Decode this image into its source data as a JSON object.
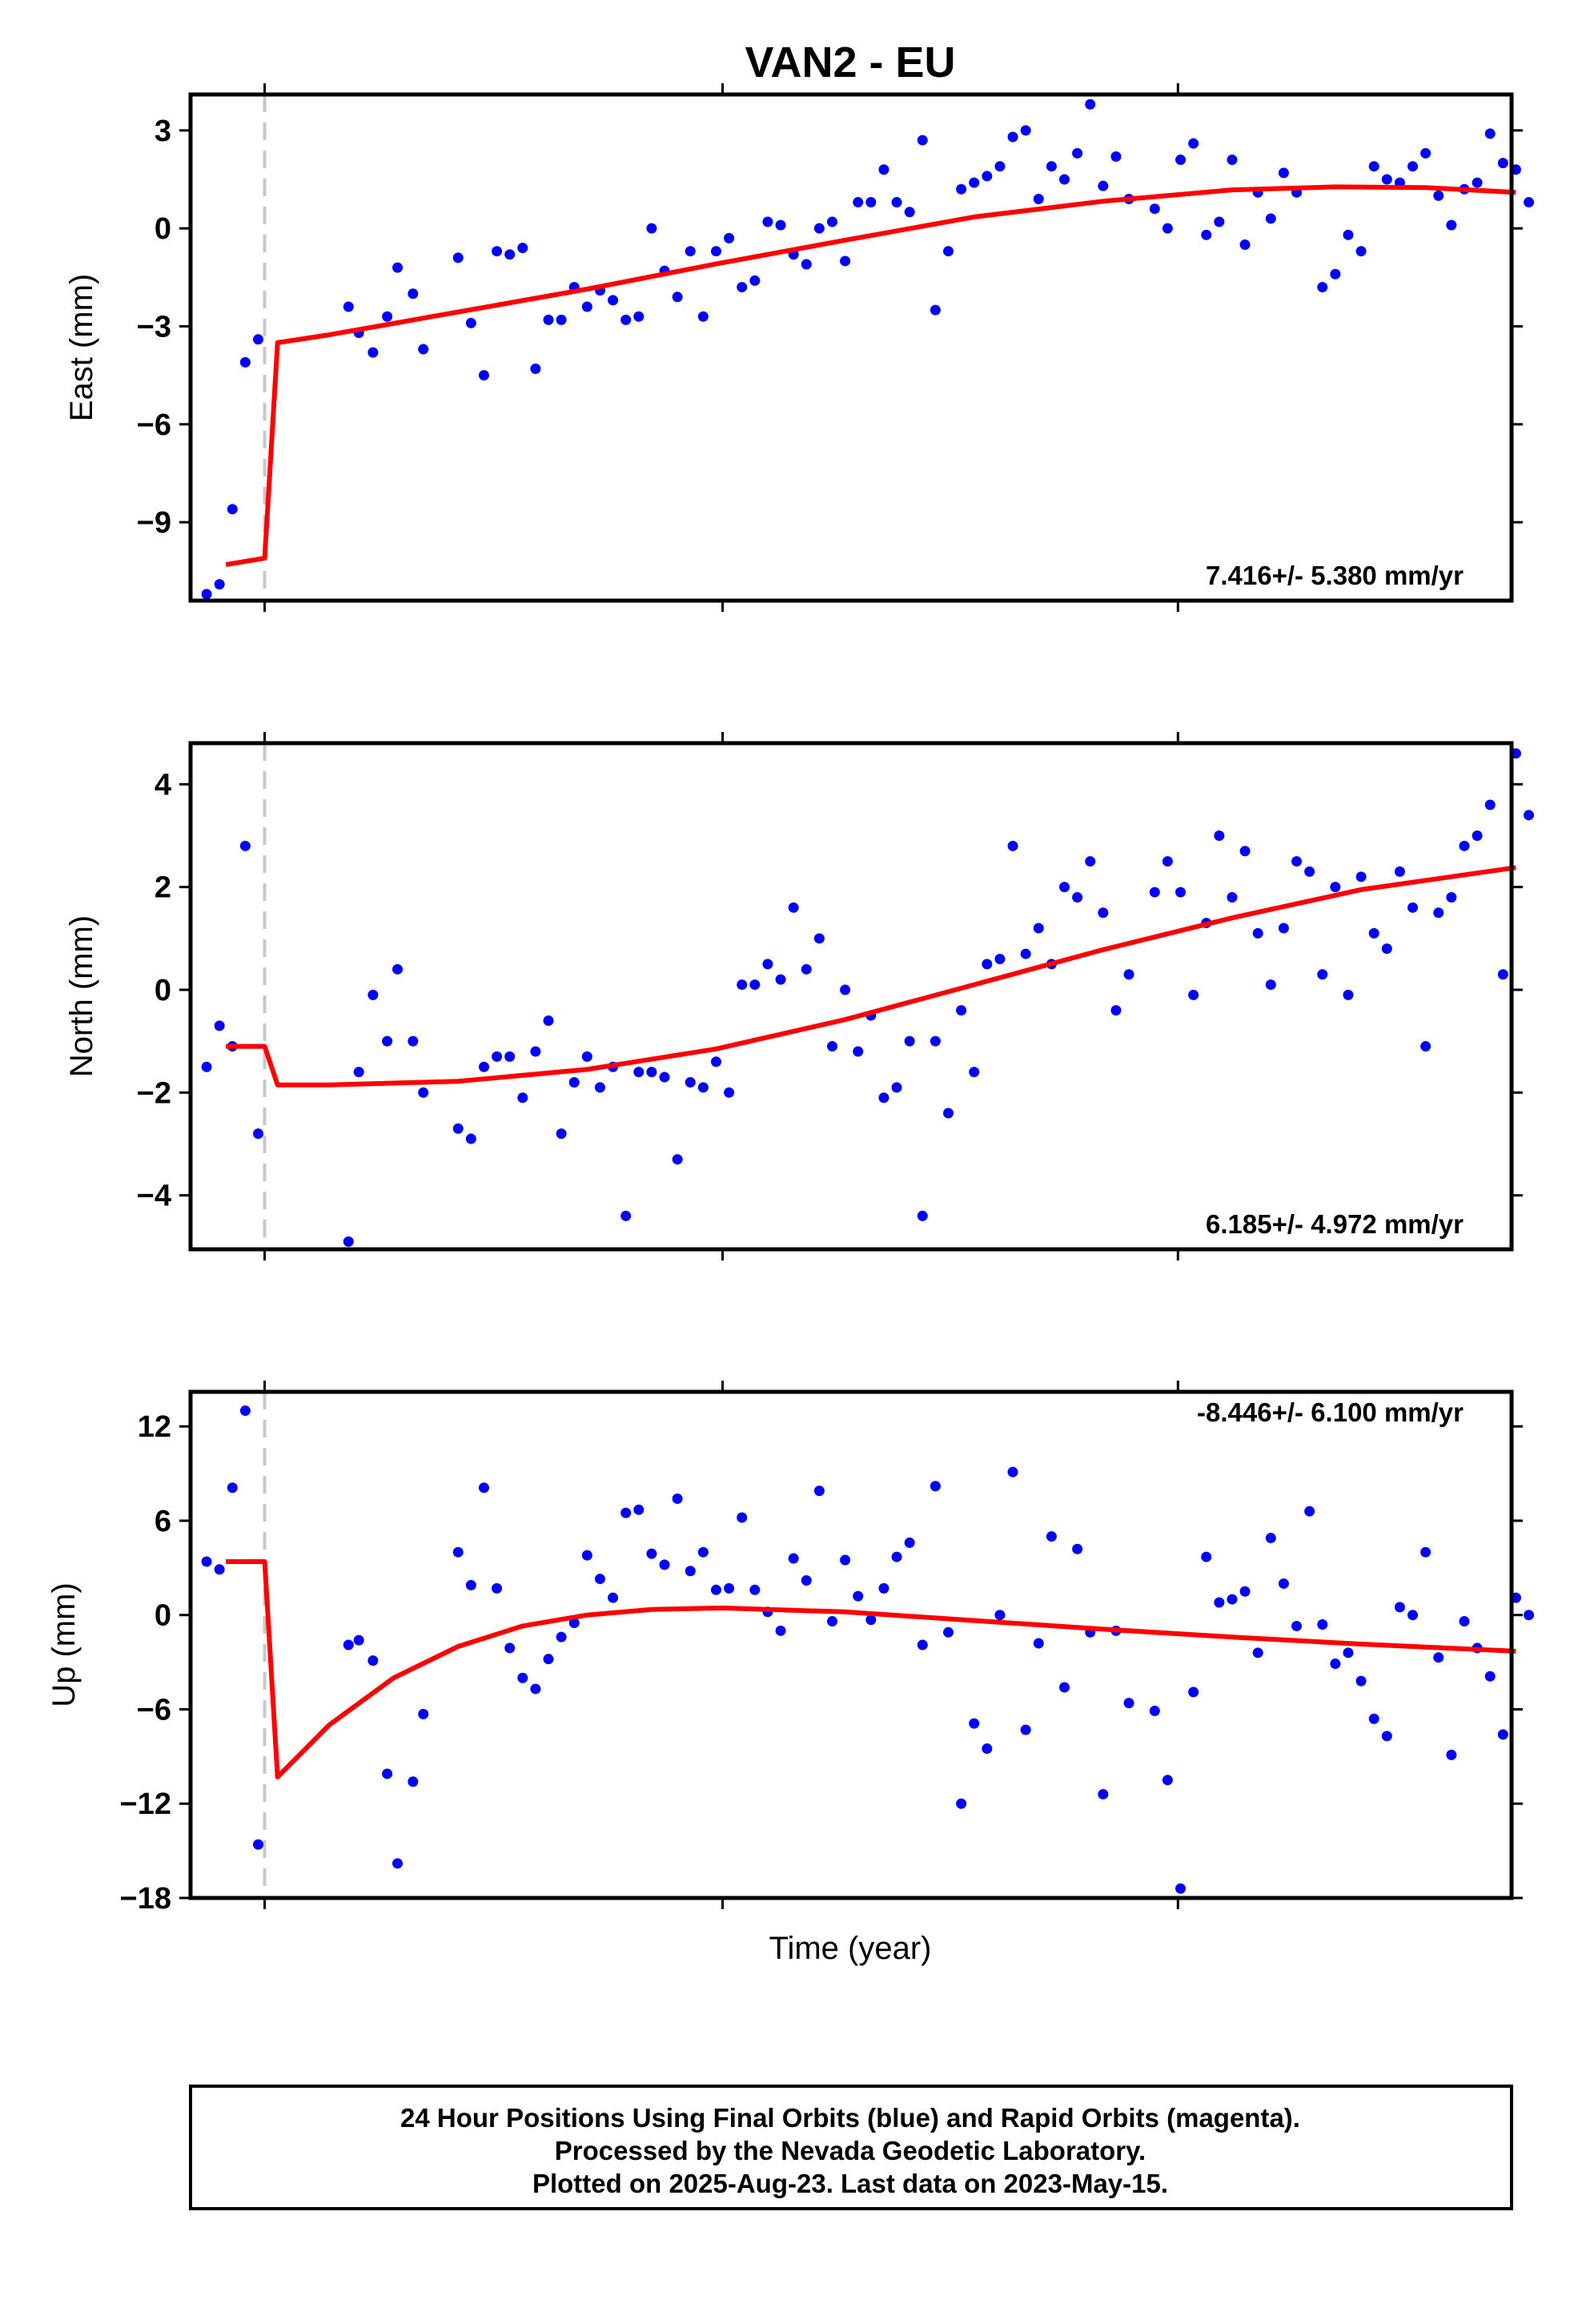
{
  "title": "VAN2 - EU",
  "footer": {
    "lines": [
      "24 Hour Positions Using Final Orbits (blue) and Rapid Orbits (magenta).",
      "Processed by the Nevada Geodetic Laboratory.",
      "Plotted on 2025-Aug-23. Last data on 2023-May-15."
    ]
  },
  "colors": {
    "points": "#0000ff",
    "model": "#ff0000",
    "dashed_event": "#c8c8c8",
    "frame": "#000000"
  },
  "chart_data": [
    {
      "type": "scatter",
      "ylabel": "East (mm)",
      "xlabel": "",
      "rate": "7.416+/- 5.380 mm/yr",
      "rate_position": "bottom-right",
      "xlim": [
        0,
        100
      ],
      "ylim": [
        -11.4,
        4.1
      ],
      "yticks": [
        3,
        0,
        -3,
        -6,
        -9
      ],
      "ytick_labels": [
        "3",
        "0",
        "−3",
        "−6",
        "−9"
      ],
      "xticks": [
        5,
        40.5,
        75.8
      ],
      "event_x": 5,
      "points": [
        [
          0.5,
          -11.2
        ],
        [
          1.5,
          -10.9
        ],
        [
          2.5,
          -8.6
        ],
        [
          3.5,
          -4.1
        ],
        [
          4.5,
          -3.4
        ],
        [
          11.5,
          -2.4
        ],
        [
          12.3,
          -3.2
        ],
        [
          13.4,
          -3.8
        ],
        [
          14.5,
          -2.7
        ],
        [
          15.3,
          -1.2
        ],
        [
          16.5,
          -2.0
        ],
        [
          17.3,
          -3.7
        ],
        [
          20.0,
          -0.9
        ],
        [
          21.0,
          -2.9
        ],
        [
          22.0,
          -4.5
        ],
        [
          23.0,
          -0.7
        ],
        [
          24.0,
          -0.8
        ],
        [
          25.0,
          -0.6
        ],
        [
          26.0,
          -4.3
        ],
        [
          27.0,
          -2.8
        ],
        [
          28.0,
          -2.8
        ],
        [
          29.0,
          -1.8
        ],
        [
          30.0,
          -2.4
        ],
        [
          31.0,
          -1.9
        ],
        [
          32.0,
          -2.2
        ],
        [
          33.0,
          -2.8
        ],
        [
          34.0,
          -2.7
        ],
        [
          35.0,
          0.0
        ],
        [
          36.0,
          -1.3
        ],
        [
          37.0,
          -2.1
        ],
        [
          38.0,
          -0.7
        ],
        [
          39.0,
          -2.7
        ],
        [
          40.0,
          -0.7
        ],
        [
          41.0,
          -0.3
        ],
        [
          42.0,
          -1.8
        ],
        [
          43.0,
          -1.6
        ],
        [
          44.0,
          0.2
        ],
        [
          45.0,
          0.1
        ],
        [
          46.0,
          -0.8
        ],
        [
          47.0,
          -1.1
        ],
        [
          48.0,
          0.0
        ],
        [
          49.0,
          0.2
        ],
        [
          50.0,
          -1.0
        ],
        [
          51.0,
          0.8
        ],
        [
          52.0,
          0.8
        ],
        [
          53.0,
          1.8
        ],
        [
          54.0,
          0.8
        ],
        [
          55.0,
          0.5
        ],
        [
          56.0,
          2.7
        ],
        [
          57.0,
          -2.5
        ],
        [
          58.0,
          -0.7
        ],
        [
          59.0,
          1.2
        ],
        [
          60.0,
          1.4
        ],
        [
          61.0,
          1.6
        ],
        [
          62.0,
          1.9
        ],
        [
          63.0,
          2.8
        ],
        [
          64.0,
          3.0
        ],
        [
          65.0,
          0.9
        ],
        [
          66.0,
          1.9
        ],
        [
          67.0,
          1.5
        ],
        [
          68.0,
          2.3
        ],
        [
          69.0,
          3.8
        ],
        [
          70.0,
          1.3
        ],
        [
          71.0,
          2.2
        ],
        [
          72.0,
          0.9
        ],
        [
          74.0,
          0.6
        ],
        [
          75.0,
          0.0
        ],
        [
          76.0,
          2.1
        ],
        [
          77.0,
          2.6
        ],
        [
          78.0,
          -0.2
        ],
        [
          79.0,
          0.2
        ],
        [
          80.0,
          2.1
        ],
        [
          81.0,
          -0.5
        ],
        [
          82.0,
          1.1
        ],
        [
          83.0,
          0.3
        ],
        [
          84.0,
          1.7
        ],
        [
          85.0,
          1.1
        ],
        [
          87.0,
          -1.8
        ],
        [
          88.0,
          -1.4
        ],
        [
          89.0,
          -0.2
        ],
        [
          90.0,
          -0.7
        ],
        [
          91.0,
          1.9
        ],
        [
          92.0,
          1.5
        ],
        [
          93.0,
          1.4
        ],
        [
          94.0,
          1.9
        ],
        [
          95.0,
          2.3
        ],
        [
          96.0,
          1.0
        ],
        [
          97.0,
          0.1
        ],
        [
          98.0,
          1.2
        ],
        [
          99.0,
          1.4
        ],
        [
          100.0,
          2.9
        ],
        [
          101.0,
          2.0
        ],
        [
          102.0,
          1.8
        ],
        [
          103.0,
          0.8
        ]
      ],
      "model": [
        [
          2.0,
          -10.3
        ],
        [
          5.0,
          -10.1
        ],
        [
          6.0,
          -3.5
        ],
        [
          10,
          -3.26
        ],
        [
          20,
          -2.56
        ],
        [
          30,
          -1.86
        ],
        [
          40,
          -1.09
        ],
        [
          50,
          -0.36
        ],
        [
          60,
          0.35
        ],
        [
          70,
          0.83
        ],
        [
          80,
          1.18
        ],
        [
          88,
          1.27
        ],
        [
          95,
          1.25
        ],
        [
          102,
          1.1
        ]
      ]
    },
    {
      "type": "scatter",
      "ylabel": "North (mm)",
      "xlabel": "",
      "rate": "6.185+/- 4.972 mm/yr",
      "rate_position": "bottom-right",
      "xlim": [
        0,
        100
      ],
      "ylim": [
        -5.05,
        4.8
      ],
      "yticks": [
        4,
        2,
        0,
        -2,
        -4
      ],
      "ytick_labels": [
        "4",
        "2",
        "0",
        "−2",
        "−4"
      ],
      "xticks": [
        5,
        40.5,
        75.8
      ],
      "event_x": 5,
      "points": [
        [
          0.5,
          -1.5
        ],
        [
          1.5,
          -0.7
        ],
        [
          2.5,
          -1.1
        ],
        [
          3.5,
          2.8
        ],
        [
          4.5,
          -2.8
        ],
        [
          11.5,
          -4.9
        ],
        [
          12.3,
          -1.6
        ],
        [
          13.4,
          -0.1
        ],
        [
          14.5,
          -1.0
        ],
        [
          15.3,
          0.4
        ],
        [
          16.5,
          -1.0
        ],
        [
          17.3,
          -2.0
        ],
        [
          20.0,
          -2.7
        ],
        [
          21.0,
          -2.9
        ],
        [
          22.0,
          -1.5
        ],
        [
          23.0,
          -1.3
        ],
        [
          24.0,
          -1.3
        ],
        [
          25.0,
          -2.1
        ],
        [
          26.0,
          -1.2
        ],
        [
          27.0,
          -0.6
        ],
        [
          28.0,
          -2.8
        ],
        [
          29.0,
          -1.8
        ],
        [
          30.0,
          -1.3
        ],
        [
          31.0,
          -1.9
        ],
        [
          32.0,
          -1.5
        ],
        [
          33.0,
          -4.4
        ],
        [
          34.0,
          -1.6
        ],
        [
          35.0,
          -1.6
        ],
        [
          36.0,
          -1.7
        ],
        [
          37.0,
          -3.3
        ],
        [
          38.0,
          -1.8
        ],
        [
          39.0,
          -1.9
        ],
        [
          40.0,
          -1.4
        ],
        [
          41.0,
          -2.0
        ],
        [
          42.0,
          0.1
        ],
        [
          43.0,
          0.1
        ],
        [
          44.0,
          0.5
        ],
        [
          45.0,
          0.2
        ],
        [
          46.0,
          1.6
        ],
        [
          47.0,
          0.4
        ],
        [
          48.0,
          1.0
        ],
        [
          49.0,
          -1.1
        ],
        [
          50.0,
          0.0
        ],
        [
          51.0,
          -1.2
        ],
        [
          52.0,
          -0.5
        ],
        [
          53.0,
          -2.1
        ],
        [
          54.0,
          -1.9
        ],
        [
          55.0,
          -1.0
        ],
        [
          56.0,
          -4.4
        ],
        [
          57.0,
          -1.0
        ],
        [
          58.0,
          -2.4
        ],
        [
          59.0,
          -0.4
        ],
        [
          60.0,
          -1.6
        ],
        [
          61.0,
          0.5
        ],
        [
          62.0,
          0.6
        ],
        [
          63.0,
          2.8
        ],
        [
          64.0,
          0.7
        ],
        [
          65.0,
          1.2
        ],
        [
          66.0,
          0.5
        ],
        [
          67.0,
          2.0
        ],
        [
          68.0,
          1.8
        ],
        [
          69.0,
          2.5
        ],
        [
          70.0,
          1.5
        ],
        [
          71.0,
          -0.4
        ],
        [
          72.0,
          0.3
        ],
        [
          74.0,
          1.9
        ],
        [
          75.0,
          2.5
        ],
        [
          76.0,
          1.9
        ],
        [
          77.0,
          -0.1
        ],
        [
          78.0,
          1.3
        ],
        [
          79.0,
          3.0
        ],
        [
          80.0,
          1.8
        ],
        [
          81.0,
          2.7
        ],
        [
          82.0,
          1.1
        ],
        [
          83.0,
          0.1
        ],
        [
          84.0,
          1.2
        ],
        [
          85.0,
          2.5
        ],
        [
          86.0,
          2.3
        ],
        [
          87.0,
          0.3
        ],
        [
          88.0,
          2.0
        ],
        [
          89.0,
          -0.1
        ],
        [
          90.0,
          2.2
        ],
        [
          91.0,
          1.1
        ],
        [
          92.0,
          0.8
        ],
        [
          93.0,
          2.3
        ],
        [
          94.0,
          1.6
        ],
        [
          95.0,
          -1.1
        ],
        [
          96.0,
          1.5
        ],
        [
          97.0,
          1.8
        ],
        [
          98.0,
          2.8
        ],
        [
          99.0,
          3.0
        ],
        [
          100.0,
          3.6
        ],
        [
          101.0,
          0.3
        ],
        [
          102.0,
          4.6
        ],
        [
          103.0,
          3.4
        ]
      ],
      "model": [
        [
          2.0,
          -1.1
        ],
        [
          5.0,
          -1.1
        ],
        [
          6.0,
          -1.85
        ],
        [
          10,
          -1.85
        ],
        [
          20,
          -1.78
        ],
        [
          30,
          -1.55
        ],
        [
          40,
          -1.15
        ],
        [
          50,
          -0.58
        ],
        [
          60,
          0.1
        ],
        [
          70,
          0.78
        ],
        [
          80,
          1.4
        ],
        [
          90,
          1.95
        ],
        [
          102,
          2.38
        ]
      ]
    },
    {
      "type": "scatter",
      "ylabel": "Up (mm)",
      "xlabel": "Time (year)",
      "rate": "-8.446+/- 6.100 mm/yr",
      "rate_position": "top-right",
      "xlim": [
        0,
        100
      ],
      "ylim": [
        -18.0,
        14.2
      ],
      "yticks": [
        12,
        6,
        0,
        -6,
        -12,
        -18
      ],
      "ytick_labels": [
        "12",
        "6",
        "0",
        "−6",
        "−12",
        "−18"
      ],
      "xticks": [
        5,
        40.5,
        75.8
      ],
      "event_x": 5,
      "points": [
        [
          0.5,
          3.4
        ],
        [
          1.5,
          2.9
        ],
        [
          2.5,
          8.1
        ],
        [
          3.5,
          13.0
        ],
        [
          4.5,
          -14.6
        ],
        [
          11.5,
          -1.9
        ],
        [
          12.3,
          -1.6
        ],
        [
          13.4,
          -2.9
        ],
        [
          14.5,
          -10.1
        ],
        [
          15.3,
          -15.8
        ],
        [
          16.5,
          -10.6
        ],
        [
          17.3,
          -6.3
        ],
        [
          20.0,
          4.0
        ],
        [
          21.0,
          1.9
        ],
        [
          22.0,
          8.1
        ],
        [
          23.0,
          1.7
        ],
        [
          24.0,
          -2.1
        ],
        [
          25.0,
          -4.0
        ],
        [
          26.0,
          -4.7
        ],
        [
          27.0,
          -2.8
        ],
        [
          28.0,
          -1.4
        ],
        [
          29.0,
          -0.5
        ],
        [
          30.0,
          3.8
        ],
        [
          31.0,
          2.3
        ],
        [
          32.0,
          1.1
        ],
        [
          33.0,
          6.5
        ],
        [
          34.0,
          6.7
        ],
        [
          35.0,
          3.9
        ],
        [
          36.0,
          3.2
        ],
        [
          37.0,
          7.4
        ],
        [
          38.0,
          2.8
        ],
        [
          39.0,
          4.0
        ],
        [
          40.0,
          1.6
        ],
        [
          41.0,
          1.7
        ],
        [
          42.0,
          6.2
        ],
        [
          43.0,
          1.6
        ],
        [
          44.0,
          0.2
        ],
        [
          45.0,
          -1.0
        ],
        [
          46.0,
          3.6
        ],
        [
          47.0,
          2.2
        ],
        [
          48.0,
          7.9
        ],
        [
          49.0,
          -0.4
        ],
        [
          50.0,
          3.5
        ],
        [
          51.0,
          1.2
        ],
        [
          52.0,
          -0.3
        ],
        [
          53.0,
          1.7
        ],
        [
          54.0,
          3.7
        ],
        [
          55.0,
          4.6
        ],
        [
          56.0,
          -1.9
        ],
        [
          57.0,
          8.2
        ],
        [
          58.0,
          -1.1
        ],
        [
          59.0,
          -12.0
        ],
        [
          60.0,
          -6.9
        ],
        [
          61.0,
          -8.5
        ],
        [
          62.0,
          0.0
        ],
        [
          63.0,
          9.1
        ],
        [
          64.0,
          -7.3
        ],
        [
          65.0,
          -1.8
        ],
        [
          66.0,
          5.0
        ],
        [
          67.0,
          -4.6
        ],
        [
          68.0,
          4.2
        ],
        [
          69.0,
          -1.1
        ],
        [
          70.0,
          -11.4
        ],
        [
          71.0,
          -1.0
        ],
        [
          72.0,
          -5.6
        ],
        [
          74.0,
          -6.1
        ],
        [
          75.0,
          -10.5
        ],
        [
          76.0,
          -17.4
        ],
        [
          77.0,
          -4.9
        ],
        [
          78.0,
          3.7
        ],
        [
          79.0,
          0.8
        ],
        [
          80.0,
          1.0
        ],
        [
          81.0,
          1.5
        ],
        [
          82.0,
          -2.4
        ],
        [
          83.0,
          4.9
        ],
        [
          84.0,
          2.0
        ],
        [
          85.0,
          -0.7
        ],
        [
          86.0,
          6.6
        ],
        [
          87.0,
          -0.6
        ],
        [
          88.0,
          -3.1
        ],
        [
          89.0,
          -2.4
        ],
        [
          90.0,
          -4.2
        ],
        [
          91.0,
          -6.6
        ],
        [
          92.0,
          -7.7
        ],
        [
          93.0,
          0.5
        ],
        [
          94.0,
          0.0
        ],
        [
          95.0,
          4.0
        ],
        [
          96.0,
          -2.7
        ],
        [
          97.0,
          -8.9
        ],
        [
          98.0,
          -0.4
        ],
        [
          99.0,
          -2.1
        ],
        [
          100.0,
          -3.9
        ],
        [
          101.0,
          -7.6
        ],
        [
          102.0,
          1.1
        ],
        [
          103.0,
          0.0
        ]
      ],
      "model": [
        [
          2.0,
          3.4
        ],
        [
          5.0,
          3.4
        ],
        [
          6.0,
          -10.3
        ],
        [
          10,
          -7.0
        ],
        [
          15,
          -4.0
        ],
        [
          20,
          -2.0
        ],
        [
          25,
          -0.7
        ],
        [
          30,
          0.0
        ],
        [
          35,
          0.35
        ],
        [
          40.5,
          0.45
        ],
        [
          50,
          0.2
        ],
        [
          60,
          -0.35
        ],
        [
          70,
          -0.9
        ],
        [
          80,
          -1.4
        ],
        [
          90,
          -1.85
        ],
        [
          102,
          -2.3
        ]
      ]
    }
  ]
}
